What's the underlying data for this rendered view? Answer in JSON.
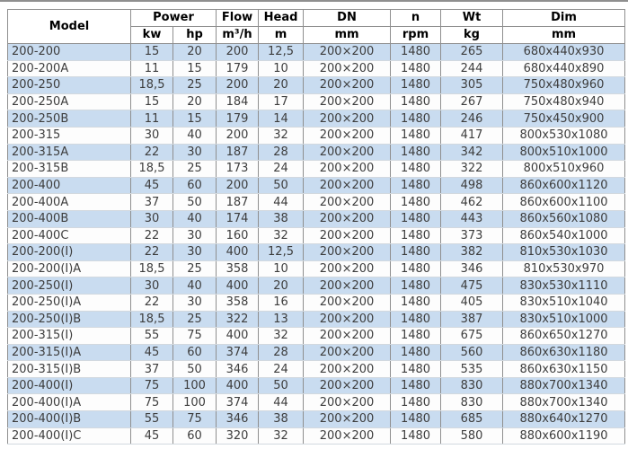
{
  "chart_data": {
    "type": "table",
    "header": {
      "model": "Model",
      "power": "Power",
      "kw": "kw",
      "hp": "hp",
      "flow": "Flow",
      "flow_unit": "m³/h",
      "head": "Head",
      "head_unit": "m",
      "dn": "DN",
      "dn_unit": "mm",
      "n": "n",
      "n_unit": "rpm",
      "wt": "Wt",
      "wt_unit": "kg",
      "dim": "Dim",
      "dim_unit": "mm"
    },
    "columns_order": [
      "model",
      "power_kw",
      "power_hp",
      "flow_m3h",
      "head_m",
      "dn_mm",
      "n_rpm",
      "wt_kg",
      "dim_mm"
    ],
    "cell_names": [
      "model-cell",
      "kw-cell",
      "hp-cell",
      "flow-cell",
      "head-cell",
      "dn-cell",
      "n-cell",
      "wt-cell",
      "dim-cell"
    ],
    "rows": [
      [
        "200-200",
        "15",
        "20",
        "200",
        "12,5",
        "200×200",
        "1480",
        "265",
        "680x440x930"
      ],
      [
        "200-200A",
        "11",
        "15",
        "179",
        "10",
        "200×200",
        "1480",
        "244",
        "680x440x890"
      ],
      [
        "200-250",
        "18,5",
        "25",
        "200",
        "20",
        "200×200",
        "1480",
        "305",
        "750x480x960"
      ],
      [
        "200-250A",
        "15",
        "20",
        "184",
        "17",
        "200×200",
        "1480",
        "267",
        "750x480x940"
      ],
      [
        "200-250B",
        "11",
        "15",
        "179",
        "14",
        "200×200",
        "1480",
        "246",
        "750x450x900"
      ],
      [
        "200-315",
        "30",
        "40",
        "200",
        "32",
        "200×200",
        "1480",
        "417",
        "800x530x1080"
      ],
      [
        "200-315A",
        "22",
        "30",
        "187",
        "28",
        "200×200",
        "1480",
        "342",
        "800x510x1000"
      ],
      [
        "200-315B",
        "18,5",
        "25",
        "173",
        "24",
        "200×200",
        "1480",
        "322",
        "800x510x960"
      ],
      [
        "200-400",
        "45",
        "60",
        "200",
        "50",
        "200×200",
        "1480",
        "498",
        "860x600x1120"
      ],
      [
        "200-400A",
        "37",
        "50",
        "187",
        "44",
        "200×200",
        "1480",
        "462",
        "860x600x1100"
      ],
      [
        "200-400B",
        "30",
        "40",
        "174",
        "38",
        "200×200",
        "1480",
        "443",
        "860x560x1080"
      ],
      [
        "200-400C",
        "22",
        "30",
        "160",
        "32",
        "200×200",
        "1480",
        "373",
        "860x540x1000"
      ],
      [
        "200-200(I)",
        "22",
        "30",
        "400",
        "12,5",
        "200×200",
        "1480",
        "382",
        "810x530x1030"
      ],
      [
        "200-200(I)A",
        "18,5",
        "25",
        "358",
        "10",
        "200×200",
        "1480",
        "346",
        "810x530x970"
      ],
      [
        "200-250(I)",
        "30",
        "40",
        "400",
        "20",
        "200×200",
        "1480",
        "475",
        "830x530x1110"
      ],
      [
        "200-250(I)A",
        "22",
        "30",
        "358",
        "16",
        "200×200",
        "1480",
        "405",
        "830x510x1040"
      ],
      [
        "200-250(I)B",
        "18,5",
        "25",
        "322",
        "13",
        "200×200",
        "1480",
        "387",
        "830x510x1000"
      ],
      [
        "200-315(I)",
        "55",
        "75",
        "400",
        "32",
        "200×200",
        "1480",
        "675",
        "860x650x1270"
      ],
      [
        "200-315(I)A",
        "45",
        "60",
        "374",
        "28",
        "200×200",
        "1480",
        "560",
        "860x630x1180"
      ],
      [
        "200-315(I)B",
        "37",
        "50",
        "346",
        "24",
        "200×200",
        "1480",
        "535",
        "860x630x1150"
      ],
      [
        "200-400(I)",
        "75",
        "100",
        "400",
        "50",
        "200×200",
        "1480",
        "830",
        "880x700x1340"
      ],
      [
        "200-400(I)A",
        "75",
        "100",
        "374",
        "44",
        "200×200",
        "1480",
        "830",
        "880x700x1340"
      ],
      [
        "200-400(I)B",
        "55",
        "75",
        "346",
        "38",
        "200×200",
        "1480",
        "685",
        "880x640x1270"
      ],
      [
        "200-400(I)C",
        "45",
        "60",
        "320",
        "32",
        "200×200",
        "1480",
        "580",
        "880x600x1190"
      ]
    ],
    "layout": {
      "striped": true,
      "grid": true,
      "first_data_row_color": "stripe_blue"
    }
  },
  "colors": {
    "row_stripe_blue": "#c9dcf0",
    "row_plain_white": "#fdfdfd",
    "border_dark": "#757575",
    "border_gray": "#8f8f8f",
    "border_light": "#d2d9df",
    "header_text": "#000000",
    "body_text": "#3d3d3d"
  }
}
